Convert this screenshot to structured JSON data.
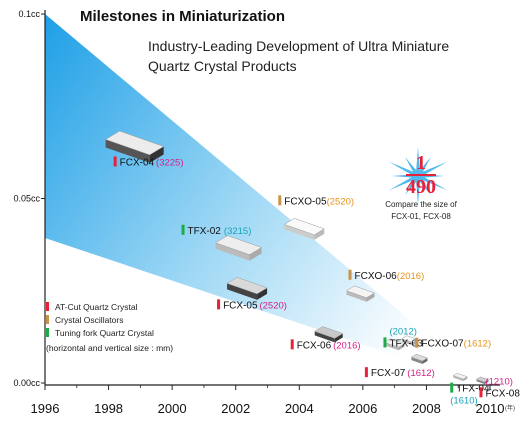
{
  "title": "Milestones in Miniaturization",
  "subtitle_line1": "Industry-Leading Development of Ultra Miniature",
  "subtitle_line2": "Quartz Crystal Products",
  "chart_data": {
    "type": "scatter",
    "xlabel": "",
    "ylabel": "",
    "x_ticks": [
      "1996",
      "1998",
      "2000",
      "2002",
      "2004",
      "2006",
      "2008",
      "2010"
    ],
    "x_unit": "(年)",
    "xlim": [
      1996,
      2010.5
    ],
    "y_ticks": [
      {
        "label": "0.1cc",
        "value": 0.1
      },
      {
        "label": "0.05cc",
        "value": 0.05
      },
      {
        "label": "0.00cc",
        "value": 0.0
      }
    ],
    "ylim": [
      0,
      0.1
    ],
    "grid": false,
    "points": [
      {
        "name": "FCX-04",
        "size": "(3225)",
        "category": "AT-Cut Quartz Crystal",
        "x": 1998.6,
        "y": 0.066
      },
      {
        "name": "FCXO-05",
        "size": "(2520)",
        "category": "Crystal Oscillators",
        "x": 2004.0,
        "y": 0.043
      },
      {
        "name": "TFX-02",
        "size": "(3215)",
        "category": "Tuning fork Quartz Crystal",
        "x": 2001.9,
        "y": 0.038
      },
      {
        "name": "FCX-05",
        "size": "(2520)",
        "category": "AT-Cut Quartz Crystal",
        "x": 2002.2,
        "y": 0.027
      },
      {
        "name": "FCXO-06",
        "size": "(2016)",
        "category": "Crystal Oscillators",
        "x": 2005.8,
        "y": 0.025
      },
      {
        "name": "FCX-06",
        "size": "(2016)",
        "category": "AT-Cut Quartz Crystal",
        "x": 2004.8,
        "y": 0.014
      },
      {
        "name": "TFX-03",
        "size": "(2012)",
        "category": "Tuning fork Quartz Crystal",
        "x": 2006.9,
        "y": 0.011
      },
      {
        "name": "FCXO-07",
        "size": "(1612)",
        "category": "Crystal Oscillators",
        "x": 2007.4,
        "y": 0.012
      },
      {
        "name": "FCX-07",
        "size": "(1612)",
        "category": "AT-Cut Quartz Crystal",
        "x": 2007.7,
        "y": 0.007
      },
      {
        "name": "TFX-04",
        "size": "(1610)",
        "category": "Tuning fork Quartz Crystal",
        "x": 2009.0,
        "y": 0.002
      },
      {
        "name": "FCX-08",
        "size": "(1210)",
        "category": "AT-Cut Quartz Crystal",
        "x": 2009.7,
        "y": 0.001
      }
    ]
  },
  "legend": {
    "items": [
      {
        "label": "AT-Cut Quartz Crystal",
        "color": "#e8203a"
      },
      {
        "label": "Crystal Oscillators",
        "color": "#c8924a"
      },
      {
        "label": "Tuning fork Quartz Crystal",
        "color": "#1faa4a"
      }
    ],
    "note": "(horizontal and vertical size : mm)"
  },
  "ratio": {
    "numerator": "1",
    "denominator": "490",
    "caption_line1": "Compare the size of",
    "caption_line2": "FCX-01, FCX-08"
  },
  "colors": {
    "at_cut": "#e8203a",
    "oscillator": "#c8924a",
    "tuning_fork": "#1faa4a",
    "size_at_cut": "#d6218a",
    "size_oscillator": "#e8921a",
    "size_tuning_fork": "#1aa3b8",
    "beam": "#3cb3ea"
  }
}
